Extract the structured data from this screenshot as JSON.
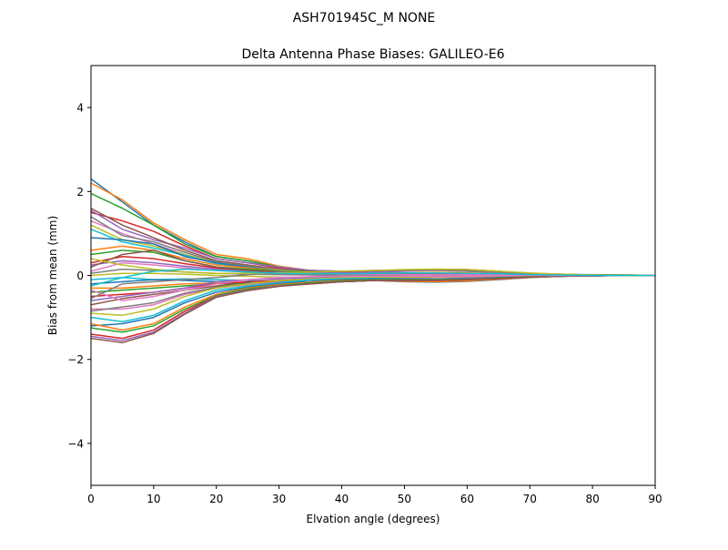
{
  "figure": {
    "suptitle": "ASH701945C_M    NONE"
  },
  "chart_data": {
    "type": "line",
    "title": "Delta Antenna Phase Biases: GALILEO-E6",
    "xlabel": "Elvation angle (degrees)",
    "ylabel": "Bias from mean (mm)",
    "xlim": [
      0,
      90
    ],
    "ylim": [
      -5,
      5
    ],
    "xticks": [
      0,
      10,
      20,
      30,
      40,
      50,
      60,
      70,
      80,
      90
    ],
    "yticks": [
      -4,
      -2,
      0,
      2,
      4
    ],
    "ytick_labels": [
      "−4",
      "−2",
      "0",
      "2",
      "4"
    ],
    "grid": false,
    "legend": "none",
    "x": [
      0,
      5,
      10,
      15,
      20,
      25,
      30,
      35,
      40,
      45,
      50,
      55,
      60,
      65,
      70,
      75,
      80,
      85,
      90
    ],
    "colors": [
      "#1f77b4",
      "#ff7f0e",
      "#2ca02c",
      "#d62728",
      "#9467bd",
      "#8c564b",
      "#e377c2",
      "#7f7f7f",
      "#bcbd22",
      "#17becf"
    ],
    "series": [
      {
        "values": [
          2.3,
          1.75,
          1.2,
          0.8,
          0.45,
          0.35,
          0.2,
          0.1,
          0.1,
          0.08,
          0.05,
          0.03,
          0.02,
          0.02,
          0.02,
          0.02,
          0.02,
          0.01,
          0.0
        ]
      },
      {
        "values": [
          2.2,
          1.8,
          1.25,
          0.85,
          0.5,
          0.4,
          0.22,
          0.12,
          0.1,
          0.08,
          0.05,
          0.03,
          0.02,
          0.02,
          0.02,
          0.02,
          0.01,
          0.01,
          0.0
        ]
      },
      {
        "values": [
          1.95,
          1.6,
          1.2,
          0.75,
          0.45,
          0.35,
          0.2,
          0.12,
          0.1,
          0.08,
          0.06,
          0.04,
          0.03,
          0.02,
          0.02,
          0.02,
          0.01,
          0.01,
          0.0
        ]
      },
      {
        "values": [
          1.5,
          1.3,
          1.05,
          0.7,
          0.4,
          0.3,
          0.18,
          0.1,
          0.08,
          0.06,
          0.05,
          0.04,
          0.03,
          0.02,
          0.02,
          0.01,
          0.01,
          0.0,
          0.0
        ]
      },
      {
        "values": [
          1.55,
          1.1,
          0.85,
          0.65,
          0.4,
          0.3,
          0.2,
          0.12,
          0.1,
          0.08,
          0.06,
          0.04,
          0.03,
          0.02,
          0.02,
          0.01,
          0.01,
          0.0,
          0.0
        ]
      },
      {
        "values": [
          1.6,
          1.2,
          0.9,
          0.6,
          0.35,
          0.25,
          0.15,
          0.1,
          0.08,
          0.06,
          0.05,
          0.04,
          0.03,
          0.02,
          0.01,
          0.01,
          0.01,
          0.0,
          0.0
        ]
      },
      {
        "values": [
          1.3,
          1.0,
          0.75,
          0.5,
          0.3,
          0.2,
          0.12,
          0.08,
          0.06,
          0.05,
          0.04,
          0.03,
          0.02,
          0.02,
          0.01,
          0.01,
          0.01,
          0.0,
          0.0
        ]
      },
      {
        "values": [
          1.4,
          0.95,
          0.8,
          0.55,
          0.32,
          0.22,
          0.14,
          0.08,
          0.07,
          0.05,
          0.04,
          0.03,
          0.02,
          0.02,
          0.01,
          0.01,
          0.01,
          0.0,
          0.0
        ]
      },
      {
        "values": [
          1.2,
          0.85,
          0.7,
          0.5,
          0.3,
          0.2,
          0.12,
          0.08,
          0.06,
          0.05,
          0.04,
          0.03,
          0.02,
          0.01,
          0.01,
          0.01,
          0.0,
          0.0,
          0.0
        ]
      },
      {
        "values": [
          1.1,
          0.8,
          0.65,
          0.48,
          0.28,
          0.18,
          0.1,
          0.06,
          0.05,
          0.04,
          0.03,
          0.02,
          0.02,
          0.01,
          0.01,
          0.01,
          0.0,
          0.0,
          0.0
        ]
      },
      {
        "values": [
          0.9,
          0.85,
          0.75,
          0.45,
          0.3,
          0.2,
          0.1,
          0.05,
          0.05,
          0.04,
          0.03,
          0.02,
          0.02,
          0.01,
          0.01,
          0.01,
          0.0,
          0.0,
          0.0
        ]
      },
      {
        "values": [
          0.6,
          0.7,
          0.6,
          0.4,
          0.25,
          0.18,
          0.1,
          0.06,
          0.05,
          0.05,
          0.06,
          0.07,
          0.06,
          0.04,
          0.02,
          0.01,
          0.01,
          0.0,
          0.0
        ]
      },
      {
        "values": [
          0.5,
          0.6,
          0.55,
          0.35,
          0.2,
          0.15,
          0.1,
          0.08,
          0.08,
          0.1,
          0.12,
          0.14,
          0.12,
          0.08,
          0.04,
          0.02,
          0.01,
          0.0,
          0.0
        ]
      },
      {
        "values": [
          0.3,
          0.45,
          0.4,
          0.28,
          0.18,
          0.12,
          0.08,
          0.06,
          0.08,
          0.1,
          0.12,
          0.15,
          0.14,
          0.1,
          0.05,
          0.03,
          0.01,
          0.0,
          0.0
        ]
      },
      {
        "values": [
          0.25,
          0.35,
          0.3,
          0.22,
          0.15,
          0.1,
          0.08,
          0.06,
          0.06,
          0.08,
          0.1,
          0.12,
          0.1,
          0.07,
          0.04,
          0.02,
          0.01,
          0.0,
          0.0
        ]
      },
      {
        "values": [
          0.2,
          0.5,
          0.6,
          0.35,
          0.2,
          0.12,
          0.06,
          0.03,
          0.02,
          0.02,
          0.03,
          0.04,
          0.03,
          0.02,
          0.01,
          0.01,
          0.0,
          0.0,
          0.0
        ]
      },
      {
        "values": [
          0.1,
          0.3,
          0.25,
          0.18,
          0.12,
          0.08,
          0.05,
          0.03,
          0.02,
          0.02,
          0.02,
          0.02,
          0.02,
          0.01,
          0.01,
          0.0,
          0.0,
          0.0,
          0.0
        ]
      },
      {
        "values": [
          0.05,
          0.15,
          0.12,
          0.08,
          0.05,
          0.03,
          0.02,
          0.01,
          0.0,
          0.0,
          -0.01,
          -0.02,
          -0.02,
          -0.01,
          0.0,
          0.0,
          0.0,
          0.0,
          0.0
        ]
      },
      {
        "values": [
          0.0,
          0.05,
          0.05,
          0.03,
          0.0,
          -0.02,
          -0.04,
          -0.05,
          -0.05,
          -0.06,
          -0.08,
          -0.1,
          -0.09,
          -0.06,
          -0.03,
          -0.01,
          0.0,
          0.0,
          0.0
        ]
      },
      {
        "values": [
          -0.1,
          -0.05,
          -0.1,
          -0.08,
          -0.1,
          -0.12,
          -0.15,
          -0.15,
          -0.12,
          -0.1,
          -0.12,
          -0.14,
          -0.12,
          -0.08,
          -0.04,
          -0.02,
          -0.01,
          0.0,
          0.0
        ]
      },
      {
        "values": [
          -0.2,
          -0.15,
          -0.1,
          -0.12,
          -0.15,
          -0.18,
          -0.2,
          -0.18,
          -0.15,
          -0.12,
          -0.15,
          -0.16,
          -0.14,
          -0.1,
          -0.05,
          -0.02,
          -0.01,
          0.0,
          0.0
        ]
      },
      {
        "values": [
          -0.3,
          -0.3,
          -0.25,
          -0.2,
          -0.18,
          -0.2,
          -0.22,
          -0.2,
          -0.15,
          -0.12,
          -0.14,
          -0.15,
          -0.13,
          -0.09,
          -0.05,
          -0.02,
          -0.01,
          0.0,
          0.0
        ]
      },
      {
        "values": [
          -0.4,
          -0.35,
          -0.3,
          -0.25,
          -0.2,
          -0.2,
          -0.2,
          -0.15,
          -0.1,
          -0.1,
          -0.12,
          -0.12,
          -0.1,
          -0.07,
          -0.04,
          -0.02,
          -0.01,
          0.0,
          0.0
        ]
      },
      {
        "values": [
          -0.5,
          -0.45,
          -0.4,
          -0.3,
          -0.2,
          -0.15,
          -0.12,
          -0.1,
          -0.08,
          -0.08,
          -0.1,
          -0.1,
          -0.08,
          -0.05,
          -0.03,
          -0.01,
          0.0,
          0.0,
          0.0
        ]
      },
      {
        "values": [
          -0.6,
          -0.5,
          -0.4,
          -0.3,
          -0.15,
          -0.1,
          -0.08,
          -0.06,
          -0.05,
          -0.06,
          -0.07,
          -0.08,
          -0.06,
          -0.04,
          -0.02,
          -0.01,
          0.0,
          0.0,
          0.0
        ]
      },
      {
        "values": [
          -0.7,
          -0.55,
          -0.45,
          -0.35,
          -0.25,
          -0.2,
          -0.15,
          -0.1,
          -0.08,
          -0.06,
          -0.05,
          -0.04,
          -0.03,
          -0.02,
          -0.01,
          0.0,
          0.0,
          0.0,
          0.0
        ]
      },
      {
        "values": [
          -0.8,
          -0.8,
          -0.7,
          -0.45,
          -0.3,
          -0.22,
          -0.15,
          -0.1,
          -0.08,
          -0.06,
          -0.05,
          -0.04,
          -0.03,
          -0.02,
          -0.01,
          0.0,
          0.0,
          0.0,
          0.0
        ]
      },
      {
        "values": [
          -0.85,
          -0.75,
          -0.65,
          -0.42,
          -0.28,
          -0.2,
          -0.14,
          -0.08,
          -0.06,
          -0.05,
          -0.04,
          -0.03,
          -0.02,
          -0.01,
          -0.01,
          0.0,
          0.0,
          0.0,
          0.0
        ]
      },
      {
        "values": [
          -0.9,
          -0.95,
          -0.8,
          -0.5,
          -0.3,
          -0.2,
          -0.12,
          -0.08,
          -0.06,
          -0.05,
          -0.04,
          -0.03,
          -0.02,
          -0.01,
          0.0,
          0.0,
          0.0,
          0.0,
          0.0
        ]
      },
      {
        "values": [
          -1.0,
          -1.1,
          -0.95,
          -0.6,
          -0.35,
          -0.25,
          -0.18,
          -0.1,
          -0.08,
          -0.07,
          -0.08,
          -0.09,
          -0.08,
          -0.05,
          -0.03,
          -0.01,
          0.0,
          0.0,
          0.0
        ]
      },
      {
        "values": [
          -1.2,
          -1.15,
          -1.0,
          -0.65,
          -0.4,
          -0.28,
          -0.2,
          -0.14,
          -0.1,
          -0.08,
          -0.08,
          -0.09,
          -0.08,
          -0.05,
          -0.03,
          -0.01,
          0.0,
          0.0,
          0.0
        ]
      },
      {
        "values": [
          -1.15,
          -1.3,
          -1.15,
          -0.75,
          -0.45,
          -0.3,
          -0.22,
          -0.16,
          -0.12,
          -0.1,
          -0.1,
          -0.1,
          -0.09,
          -0.06,
          -0.03,
          -0.01,
          0.0,
          0.0,
          0.0
        ]
      },
      {
        "values": [
          -1.25,
          -1.35,
          -1.2,
          -0.8,
          -0.48,
          -0.32,
          -0.24,
          -0.18,
          -0.13,
          -0.1,
          -0.1,
          -0.1,
          -0.09,
          -0.06,
          -0.03,
          -0.02,
          0.0,
          0.0,
          0.0
        ]
      },
      {
        "values": [
          -1.4,
          -1.5,
          -1.3,
          -0.85,
          -0.5,
          -0.35,
          -0.25,
          -0.2,
          -0.15,
          -0.12,
          -0.12,
          -0.12,
          -0.1,
          -0.07,
          -0.04,
          -0.02,
          -0.01,
          0.0,
          0.0
        ]
      },
      {
        "values": [
          -1.45,
          -1.55,
          -1.35,
          -0.9,
          -0.5,
          -0.35,
          -0.25,
          -0.2,
          -0.15,
          -0.12,
          -0.12,
          -0.12,
          -0.1,
          -0.07,
          -0.04,
          -0.02,
          -0.01,
          0.0,
          0.0
        ]
      },
      {
        "values": [
          -1.5,
          -1.6,
          -1.38,
          -0.92,
          -0.52,
          -0.36,
          -0.26,
          -0.2,
          -0.15,
          -0.12,
          -0.12,
          -0.12,
          -0.1,
          -0.07,
          -0.04,
          -0.02,
          -0.01,
          0.0,
          0.0
        ]
      },
      {
        "values": [
          -0.35,
          -0.6,
          -0.5,
          -0.35,
          -0.2,
          -0.1,
          -0.05,
          -0.03,
          -0.02,
          -0.02,
          -0.02,
          -0.02,
          -0.01,
          -0.01,
          0.0,
          0.0,
          0.0,
          0.0,
          0.0
        ]
      },
      {
        "values": [
          -0.55,
          -0.2,
          -0.15,
          -0.1,
          -0.05,
          0.02,
          0.05,
          0.08,
          0.1,
          0.12,
          0.12,
          0.12,
          0.1,
          0.07,
          0.04,
          0.02,
          0.01,
          0.0,
          0.0
        ]
      },
      {
        "values": [
          0.4,
          0.25,
          0.15,
          0.08,
          0.05,
          0.05,
          0.06,
          0.08,
          0.1,
          0.12,
          0.14,
          0.15,
          0.14,
          0.1,
          0.06,
          0.03,
          0.01,
          0.0,
          0.0
        ]
      },
      {
        "values": [
          -0.25,
          -0.05,
          0.1,
          0.15,
          0.12,
          0.08,
          0.05,
          0.04,
          0.04,
          0.05,
          0.06,
          0.06,
          0.05,
          0.04,
          0.02,
          0.01,
          0.0,
          0.0,
          0.0
        ]
      }
    ]
  }
}
